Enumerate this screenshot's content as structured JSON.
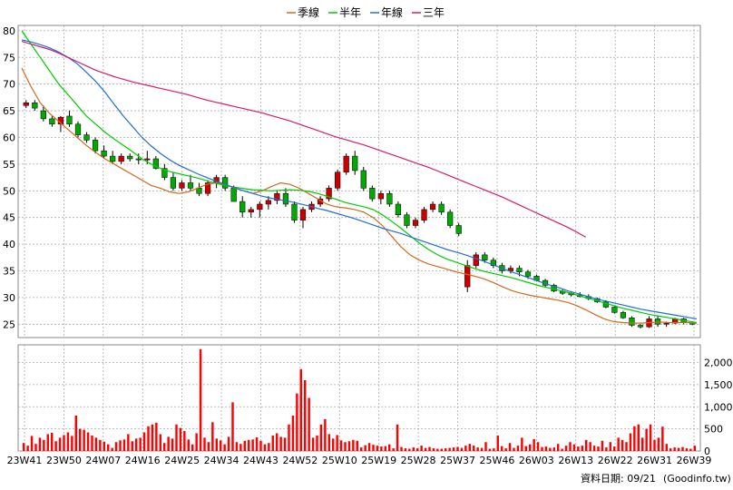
{
  "chart_data": [
    {
      "type": "candlestick-line",
      "title": "",
      "legend_position": "top-center",
      "legend": [
        {
          "name": "季線",
          "color": "#d2691e"
        },
        {
          "name": "半年",
          "color": "#00cc00"
        },
        {
          "name": "年線",
          "color": "#1e6fd9"
        },
        {
          "name": "三年",
          "color": "#d61c6a"
        }
      ],
      "x_ticks": [
        "23W41",
        "23W50",
        "24W07",
        "24W16",
        "24W25",
        "24W34",
        "24W43",
        "24W52",
        "25W10",
        "25W19",
        "25W28",
        "25W37",
        "25W46",
        "26W03",
        "26W13",
        "26W22",
        "26W31",
        "26W39"
      ],
      "y_ticks": [
        80,
        75,
        70,
        65,
        60,
        55,
        50,
        45,
        40,
        35,
        30,
        25
      ],
      "ylim": [
        22.5,
        81
      ],
      "grid": true,
      "colors": {
        "up": "#cc0000",
        "down": "#00aa00",
        "flat": "#000000"
      },
      "series": [
        {
          "name": "季線",
          "color": "#d2691e",
          "values": [
            73,
            69.5,
            66.5,
            64.5,
            63,
            61.5,
            60,
            58.5,
            57.2,
            56,
            55,
            54,
            53,
            52,
            51,
            50.5,
            49.8,
            49.5,
            49.8,
            50.5,
            51.2,
            51.5,
            51.2,
            50.5,
            50,
            49.5,
            50,
            50.8,
            51.5,
            51.2,
            50.5,
            49.5,
            48.5,
            47.5,
            47,
            46.8,
            46.5,
            46,
            45,
            43.5,
            41.5,
            39.5,
            38,
            37,
            36.3,
            35.8,
            35.3,
            34.8,
            34.4,
            34,
            33.5,
            32.8,
            32,
            31.3,
            30.8,
            30.4,
            30.1,
            29.8,
            29.5,
            29.1,
            28.5,
            27.7,
            26.8,
            26,
            25.5,
            25.3,
            25.2,
            25.2,
            25.3,
            25.4,
            25.3,
            25.3,
            25.3,
            25.2
          ]
        },
        {
          "name": "半年",
          "color": "#00cc00",
          "values": [
            80,
            77.5,
            75,
            72.5,
            70,
            68,
            66,
            64,
            62.5,
            61,
            59.7,
            58.5,
            57.3,
            56,
            55,
            54.2,
            53.6,
            53.2,
            52.8,
            52.4,
            51.9,
            51.4,
            51,
            50.7,
            50.4,
            50.2,
            50.1,
            50,
            50.1,
            50.2,
            50.1,
            49.9,
            49.5,
            49,
            48.4,
            47.8,
            47.4,
            47,
            46.5,
            45.5,
            44.3,
            43,
            41.6,
            40.2,
            39,
            38,
            37.2,
            36.6,
            36,
            35.4,
            34.9,
            34.5,
            34.1,
            33.7,
            33.2,
            32.7,
            32.2,
            31.8,
            31.4,
            31,
            30.5,
            30,
            29.5,
            29,
            28.5,
            28,
            27.6,
            27.2,
            26.8,
            26.5,
            26.2,
            25.9,
            25.6,
            25.3
          ]
        },
        {
          "name": "年線",
          "color": "#1e6fd9",
          "values": [
            78.3,
            77.9,
            77.4,
            76.8,
            76,
            75,
            73.8,
            72.2,
            70.5,
            68.5,
            66.2,
            64,
            62,
            60,
            58.4,
            57,
            55.8,
            54.8,
            54,
            53.2,
            52.5,
            51.8,
            51.2,
            50.6,
            50,
            49.5,
            49,
            48.6,
            48.3,
            48,
            47.6,
            47.2,
            46.7,
            46.3,
            45.8,
            45.3,
            44.8,
            44.2,
            43.6,
            43,
            42.5,
            42,
            41.4,
            40.8,
            40.2,
            39.6,
            39,
            38.5,
            38,
            37.4,
            36.8,
            36.1,
            35.4,
            34.8,
            34.2,
            33.6,
            33,
            32.4,
            31.9,
            31.3,
            30.8,
            30.3,
            29.8,
            29.4,
            29,
            28.6,
            28.2,
            27.8,
            27.5,
            27.2,
            26.9,
            26.6,
            26.3,
            26
          ]
        },
        {
          "name": "三年",
          "color": "#d61c6a",
          "values": [
            78,
            77.5,
            77,
            76.5,
            75.8,
            75,
            74.2,
            73.4,
            72.6,
            72,
            71.4,
            70.9,
            70.4,
            70,
            69.6,
            69.2,
            68.8,
            68.4,
            68,
            67.5,
            67,
            66.6,
            66.2,
            65.8,
            65.4,
            65,
            64.6,
            64.1,
            63.6,
            63.1,
            62.5,
            61.9,
            61.3,
            60.7,
            60.1,
            59.6,
            59.1,
            58.6,
            58,
            57.4,
            56.8,
            56.2,
            55.6,
            55,
            54.4,
            53.7,
            53,
            52.3,
            51.6,
            50.9,
            50.2,
            49.5,
            48.8,
            48,
            47.2,
            46.4,
            45.6,
            44.8,
            44,
            43.2,
            42.3,
            41.3
          ]
        }
      ],
      "candles": [
        [
          66,
          67,
          65.5,
          66.5
        ],
        [
          66.5,
          67,
          65,
          65.5
        ],
        [
          65,
          66,
          63,
          63.5
        ],
        [
          63.5,
          64,
          62,
          62.5
        ],
        [
          62.5,
          64,
          61,
          63.8
        ],
        [
          64,
          65,
          62,
          62.5
        ],
        [
          62.5,
          63,
          60,
          60.5
        ],
        [
          60.5,
          61,
          59,
          59.5
        ],
        [
          59.5,
          60,
          57,
          57.5
        ],
        [
          57.5,
          58.5,
          56,
          56.5
        ],
        [
          56.5,
          57.5,
          55,
          55.5
        ],
        [
          55.5,
          57,
          55,
          56.5
        ],
        [
          56.5,
          57,
          55.5,
          56
        ],
        [
          56,
          57,
          55,
          55.8
        ],
        [
          55.8,
          57.5,
          55,
          56
        ],
        [
          56,
          56.5,
          54,
          54.2
        ],
        [
          54.2,
          55,
          52,
          52.5
        ],
        [
          52.5,
          53.5,
          50,
          50.5
        ],
        [
          50.5,
          52,
          50,
          51.5
        ],
        [
          51.5,
          53,
          50,
          50.5
        ],
        [
          50.5,
          51.5,
          49,
          49.5
        ],
        [
          49.5,
          52,
          49,
          51.5
        ],
        [
          51.5,
          53,
          50.5,
          52.5
        ],
        [
          52.5,
          53,
          50,
          50.5
        ],
        [
          50.5,
          51,
          48,
          48
        ],
        [
          48,
          49,
          45,
          46
        ],
        [
          46,
          47,
          45,
          46.5
        ],
        [
          46.5,
          48,
          45,
          47.5
        ],
        [
          47.5,
          49,
          46.5,
          48.2
        ],
        [
          48.2,
          50,
          47.5,
          49.5
        ],
        [
          49.5,
          50.5,
          47,
          47.5
        ],
        [
          47.5,
          48,
          44,
          44.5
        ],
        [
          44.5,
          47,
          43,
          46.5
        ],
        [
          46.5,
          48,
          46,
          47.5
        ],
        [
          47.5,
          49,
          47,
          48.5
        ],
        [
          48.5,
          51,
          48,
          50.5
        ],
        [
          50.5,
          54,
          50,
          53.5
        ],
        [
          53.5,
          57,
          53,
          56.5
        ],
        [
          56.5,
          57.5,
          53,
          53.8
        ],
        [
          53.8,
          54.5,
          50,
          50.5
        ],
        [
          50.5,
          51,
          48,
          48.5
        ],
        [
          48.5,
          50,
          47.5,
          49.5
        ],
        [
          49.5,
          50,
          47,
          47.5
        ],
        [
          47.5,
          48,
          45,
          45.5
        ],
        [
          45.5,
          46,
          43,
          43.5
        ],
        [
          43.5,
          45,
          43,
          44.5
        ],
        [
          44.5,
          47,
          44,
          46.5
        ],
        [
          46.5,
          48,
          46,
          47.5
        ],
        [
          47.5,
          48,
          45.5,
          46
        ],
        [
          46,
          46.5,
          43,
          43.5
        ],
        [
          43.5,
          44,
          41.5,
          42
        ],
        [
          32,
          37,
          31,
          36
        ],
        [
          36,
          38.5,
          35.5,
          38
        ],
        [
          38,
          38.5,
          36.5,
          37
        ],
        [
          37,
          37.5,
          35.5,
          36
        ],
        [
          36,
          36.5,
          34.5,
          35
        ],
        [
          35,
          36,
          34.5,
          35.5
        ],
        [
          35.5,
          36,
          34,
          34.8
        ],
        [
          34.8,
          35.2,
          33.5,
          34
        ],
        [
          34,
          34.3,
          33,
          33.2
        ],
        [
          33.2,
          33.5,
          32,
          32.3
        ],
        [
          32.3,
          32.6,
          31,
          31.2
        ],
        [
          31.2,
          31.5,
          30.5,
          30.8
        ],
        [
          30.8,
          31.2,
          30.2,
          30.5
        ],
        [
          30.5,
          31,
          30,
          30.2
        ],
        [
          30.2,
          30.6,
          29.5,
          29.8
        ],
        [
          29.8,
          30,
          29,
          29.2
        ],
        [
          29.2,
          29.5,
          28,
          28.2
        ],
        [
          28.2,
          28.5,
          27,
          27.2
        ],
        [
          27.2,
          27.5,
          26,
          26.2
        ],
        [
          26.2,
          26.5,
          24.5,
          24.8
        ],
        [
          24.8,
          25,
          24.2,
          24.5
        ],
        [
          24.5,
          26.5,
          24.3,
          26
        ],
        [
          26,
          26.5,
          24.5,
          25
        ],
        [
          25,
          25.5,
          24.5,
          25.2
        ],
        [
          25.2,
          26.2,
          25,
          26
        ],
        [
          26,
          26.2,
          25,
          25.3
        ],
        [
          25.3,
          25.5,
          24.8,
          25
        ]
      ],
      "volume": {
        "ylim": [
          0,
          2400
        ],
        "y_ticks": [
          "2,000",
          "1,500",
          "1,000",
          "500",
          "0"
        ],
        "y_tick_values": [
          2000,
          1500,
          1000,
          500,
          0
        ],
        "values": [
          180,
          120,
          340,
          160,
          300,
          250,
          380,
          410,
          220,
          300,
          360,
          420,
          340,
          800,
          500,
          480,
          420,
          350,
          300,
          250,
          210,
          150,
          70,
          200,
          240,
          260,
          380,
          220,
          280,
          300,
          420,
          560,
          600,
          640,
          380,
          180,
          320,
          280,
          600,
          520,
          450,
          260,
          150,
          400,
          2300,
          300,
          200,
          650,
          280,
          240,
          150,
          320,
          1100,
          200,
          160,
          230,
          250,
          260,
          310,
          230,
          150,
          180,
          350,
          400,
          320,
          300,
          600,
          800,
          1300,
          1850,
          1600,
          1200,
          300,
          350,
          600,
          720,
          380,
          280,
          360,
          240,
          200,
          220,
          250,
          230,
          80,
          130,
          180,
          140,
          120,
          100,
          110,
          150,
          60,
          600,
          90,
          60,
          50,
          80,
          60,
          120,
          70,
          90,
          60,
          50,
          50,
          60,
          70,
          80,
          90,
          70,
          120,
          160,
          120,
          80,
          70,
          200,
          50,
          60,
          350,
          110,
          60,
          180,
          70,
          120,
          300,
          110,
          150,
          270,
          200,
          90,
          100,
          70,
          80,
          160,
          50,
          120,
          200,
          150,
          100,
          120,
          250,
          200,
          120,
          100,
          230,
          80,
          200,
          100,
          300,
          250,
          200,
          400,
          560,
          600,
          300,
          500,
          600,
          250,
          300,
          550,
          160,
          60,
          80,
          70,
          90,
          60,
          50,
          120
        ]
      }
    }
  ],
  "footer": {
    "date_label": "資料日期: 09/21",
    "source_label": "(Goodinfo.tw)"
  }
}
